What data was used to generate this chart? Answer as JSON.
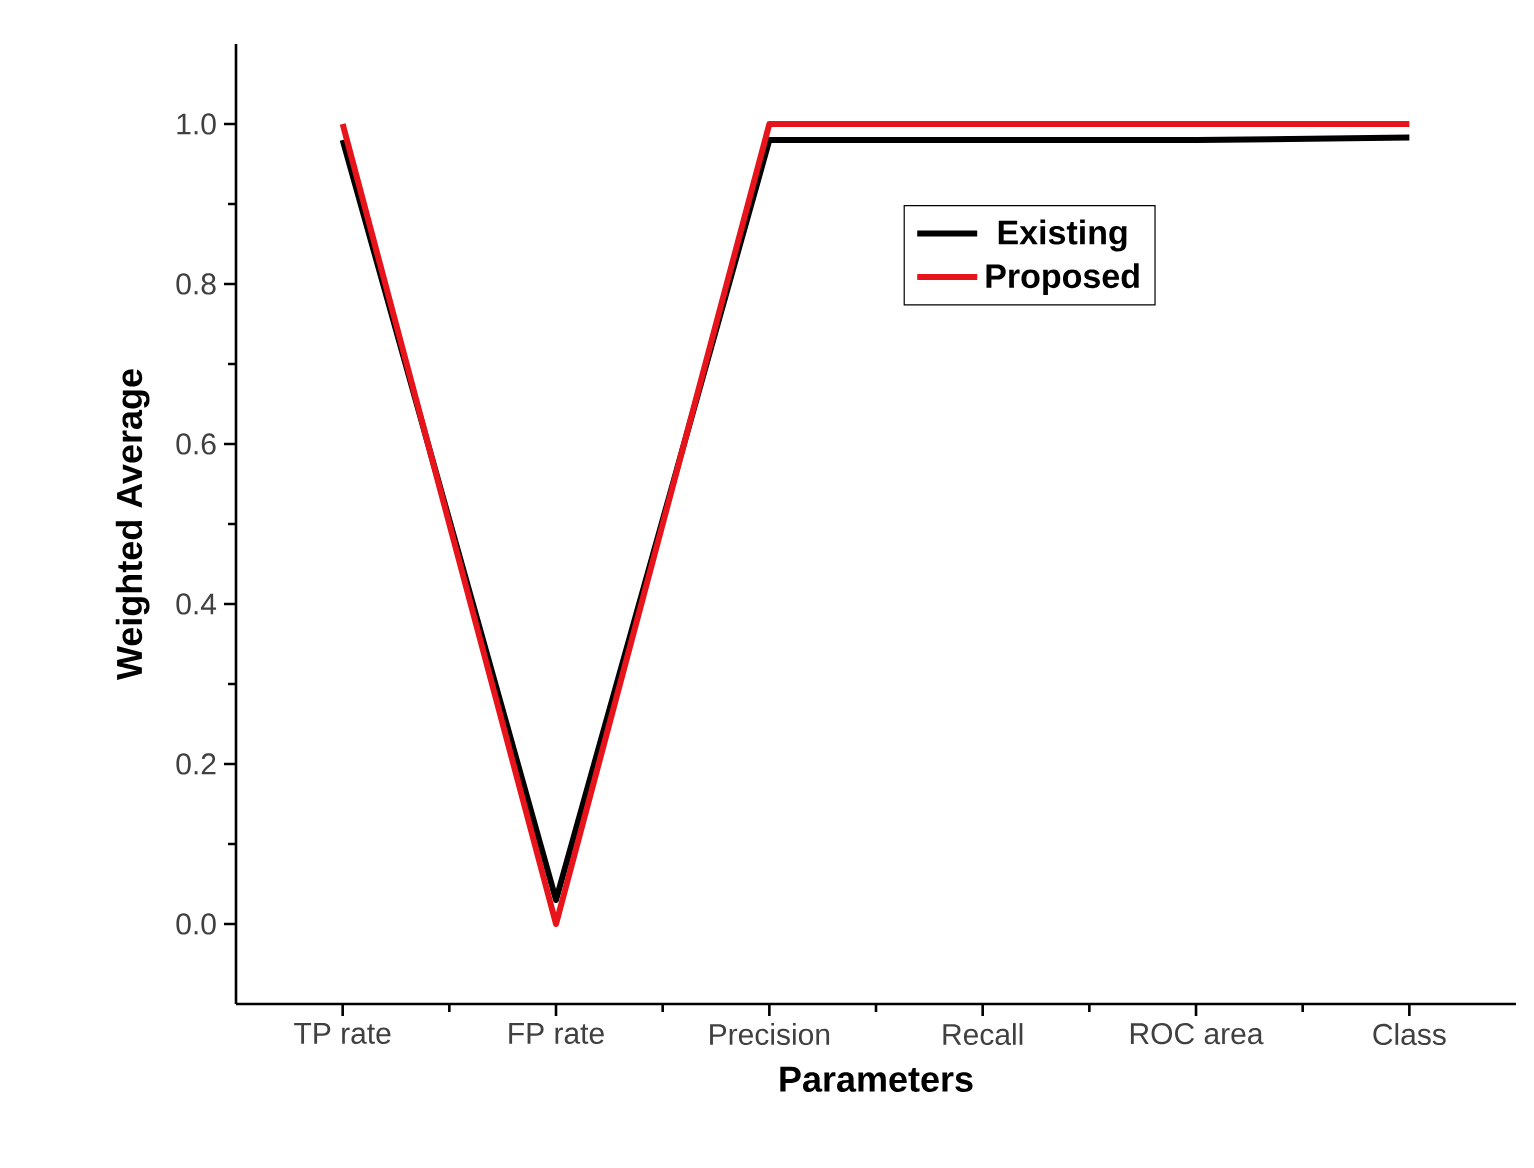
{
  "chart_data": {
    "type": "line",
    "xlabel": "Parameters",
    "ylabel": "Weighted Average",
    "categories": [
      "TP rate",
      "FP rate",
      "Precision",
      "Recall",
      "ROC area",
      "Class"
    ],
    "series": [
      {
        "name": "Existing",
        "color": "#000000",
        "values": [
          0.98,
          0.03,
          0.98,
          0.98,
          0.98,
          0.983
        ]
      },
      {
        "name": "Proposed",
        "color": "#e8141b",
        "values": [
          1.0,
          0.0,
          1.0,
          1.0,
          1.0,
          1.0
        ]
      }
    ],
    "ylim": [
      -0.1,
      1.1
    ],
    "yticks": [
      {
        "value": 0,
        "label": "0.0"
      },
      0.2,
      0.4,
      0.6,
      0.8,
      {
        "value": 1,
        "label": "1.0"
      }
    ],
    "legend": "center",
    "marker": "none",
    "line_style": "solid",
    "grid": false
  }
}
